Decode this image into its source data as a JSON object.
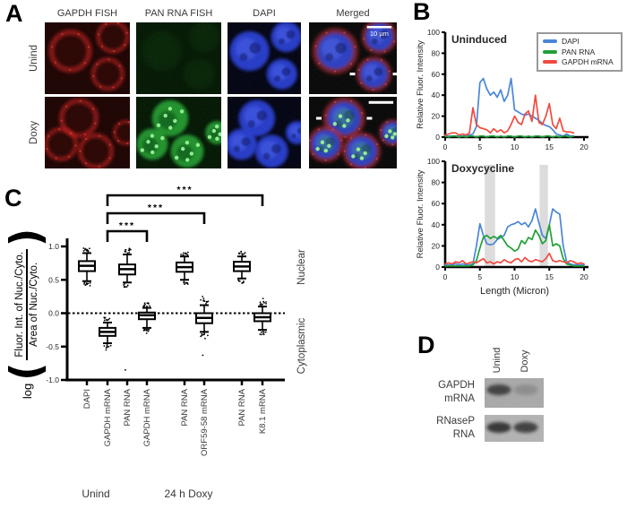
{
  "panels": {
    "a": {
      "label": "A",
      "col_headers": [
        "GAPDH FISH",
        "PAN RNA FISH",
        "DAPI",
        "Merged"
      ],
      "row_labels": [
        "Unind",
        "Doxy"
      ],
      "scale_bar_label": "10 µm",
      "channels": {
        "red": "#c42420",
        "green": "#27a335",
        "blue": "#2940d6"
      }
    },
    "b": {
      "label": "B",
      "legend": [
        {
          "label": "DAPI",
          "color": "#4a86d8"
        },
        {
          "label": "PAN RNA",
          "color": "#21a038"
        },
        {
          "label": "GAPDH mRNA",
          "color": "#f04b40"
        }
      ]
    },
    "c": {
      "label": "C",
      "ylabel_prefix": "log",
      "ylabel_paren_open": "(",
      "ylabel_paren_close": ")",
      "ylabel_numerator": "Fluor. Int. of Nuc./Cyto.",
      "ylabel_denominator": "Area of Nuc./Cyto.",
      "right_label_top": "Nuclear",
      "right_label_bottom": "Cytoplasmic",
      "groups": [
        "Unind",
        "24 h Doxy"
      ]
    },
    "d": {
      "label": "D",
      "col_labels": [
        "Unind",
        "Doxy"
      ],
      "row_labels": [
        [
          "GAPDH",
          "mRNA"
        ],
        [
          "RNaseP",
          "RNA"
        ]
      ],
      "band_intensity": [
        [
          0.78,
          0.2
        ],
        [
          0.88,
          0.8
        ]
      ]
    }
  },
  "chart_data": [
    {
      "type": "line",
      "title": "Uninduced",
      "xlabel": "",
      "ylabel": "Relative Fluor. Intensity",
      "xlim": [
        0,
        20
      ],
      "ylim": [
        0,
        100
      ],
      "xticks": [
        0,
        5,
        10,
        15,
        20
      ],
      "yticks": [
        0,
        20,
        40,
        60,
        80,
        100
      ],
      "legend_position": "top-right",
      "x": [
        0,
        0.5,
        1,
        1.5,
        2,
        2.5,
        3,
        3.5,
        4,
        4.5,
        5,
        5.5,
        6,
        6.5,
        7,
        7.5,
        8,
        8.5,
        9,
        9.5,
        10,
        10.5,
        11,
        11.5,
        12,
        12.5,
        13,
        13.5,
        14,
        14.5,
        15,
        15.5,
        16,
        16.5,
        17,
        17.5,
        18,
        18.5
      ],
      "series": [
        {
          "name": "DAPI",
          "color": "#4a86d8",
          "y": [
            1,
            1,
            1,
            1,
            1,
            1,
            2,
            2,
            3,
            10,
            52,
            56,
            46,
            40,
            43,
            38,
            45,
            34,
            40,
            56,
            26,
            24,
            22,
            21,
            22,
            20,
            18,
            16,
            13,
            11,
            10,
            7,
            3,
            2,
            1,
            3,
            1,
            1
          ]
        },
        {
          "name": "PAN RNA",
          "color": "#21a038",
          "y": [
            1,
            0,
            1,
            1,
            0,
            1,
            0,
            1,
            1,
            0,
            1,
            1,
            0,
            1,
            1,
            0,
            1,
            0,
            1,
            1,
            0,
            1,
            1,
            0,
            1,
            0,
            1,
            1,
            0,
            1,
            1,
            0,
            1,
            0,
            1,
            1,
            0,
            1
          ]
        },
        {
          "name": "GAPDH mRNA",
          "color": "#f04b40",
          "y": [
            2,
            3,
            4,
            4,
            2,
            3,
            2,
            4,
            28,
            12,
            9,
            8,
            7,
            4,
            8,
            5,
            7,
            4,
            6,
            12,
            20,
            14,
            12,
            22,
            25,
            15,
            40,
            14,
            12,
            20,
            32,
            12,
            8,
            18,
            6,
            5,
            5,
            4
          ]
        }
      ]
    },
    {
      "type": "line",
      "title": "Doxycycline",
      "xlabel": "Length (Micron)",
      "ylabel": "Relative Fluor. Intensity",
      "xlim": [
        0,
        20
      ],
      "ylim": [
        0,
        100
      ],
      "xticks": [
        0,
        5,
        10,
        15,
        20
      ],
      "yticks": [
        0,
        20,
        40,
        60,
        80,
        100
      ],
      "shaded_regions": [
        [
          5.7,
          7.2
        ],
        [
          13.6,
          14.8
        ]
      ],
      "x": [
        0,
        0.5,
        1,
        1.5,
        2,
        2.5,
        3,
        3.5,
        4,
        4.5,
        5,
        5.5,
        6,
        6.5,
        7,
        7.5,
        8,
        8.5,
        9,
        9.5,
        10,
        10.5,
        11,
        11.5,
        12,
        12.5,
        13,
        13.5,
        14,
        14.5,
        15,
        15.5,
        16,
        16.5,
        17,
        17.5,
        18,
        18.5,
        19,
        19.5,
        20
      ],
      "series": [
        {
          "name": "DAPI",
          "color": "#4a86d8",
          "y": [
            2,
            2,
            2,
            3,
            2,
            3,
            2,
            2,
            3,
            20,
            41,
            30,
            22,
            21,
            22,
            26,
            28,
            30,
            38,
            40,
            41,
            43,
            40,
            42,
            38,
            44,
            55,
            42,
            30,
            27,
            40,
            55,
            52,
            50,
            20,
            5,
            3,
            2,
            2,
            2,
            2
          ]
        },
        {
          "name": "PAN RNA",
          "color": "#21a038",
          "y": [
            1,
            1,
            1,
            1,
            1,
            1,
            1,
            1,
            2,
            6,
            18,
            28,
            30,
            27,
            29,
            27,
            30,
            25,
            20,
            18,
            15,
            17,
            25,
            22,
            28,
            26,
            35,
            30,
            22,
            25,
            40,
            20,
            22,
            20,
            8,
            3,
            2,
            1,
            1,
            1,
            1
          ]
        },
        {
          "name": "GAPDH mRNA",
          "color": "#f04b40",
          "y": [
            3,
            4,
            3,
            5,
            4,
            6,
            3,
            4,
            5,
            4,
            6,
            8,
            4,
            5,
            3,
            5,
            4,
            7,
            5,
            4,
            7,
            8,
            5,
            9,
            6,
            5,
            7,
            6,
            5,
            8,
            13,
            6,
            5,
            6,
            5,
            4,
            6,
            5,
            3,
            4,
            3
          ]
        }
      ]
    },
    {
      "type": "box",
      "ylabel": "log (Fluor. Int. of Nuc./Cyto. / Area of Nuc./Cyto.)",
      "ylim": [
        -1.0,
        1.0
      ],
      "yticks": [
        1.0,
        0.5,
        0.0,
        -0.5,
        -1.0
      ],
      "zero_line_dashed": true,
      "right_axis_labels": [
        "Nuclear",
        "Cytoplasmic"
      ],
      "categories": [
        {
          "label": "DAPI",
          "group": "Unind",
          "median": 0.71,
          "q1": 0.63,
          "q3": 0.78,
          "whisker_low": 0.48,
          "whisker_high": 0.9,
          "outliers": [
            0.95,
            0.97,
            0.45,
            0.42
          ]
        },
        {
          "label": "GAPDH mRNA",
          "group": "Unind",
          "median": -0.28,
          "q1": -0.34,
          "q3": -0.22,
          "whisker_low": -0.45,
          "whisker_high": -0.14,
          "outliers": [
            -0.52,
            -0.55
          ]
        },
        {
          "label": "PAN RNA",
          "group": "Unind",
          "median": 0.66,
          "q1": 0.58,
          "q3": 0.73,
          "whisker_low": 0.46,
          "whisker_high": 0.88,
          "outliers": [
            0.97,
            0.95,
            0.44,
            -0.85
          ]
        },
        {
          "label": "GAPDH mRNA",
          "group": "24 h Doxy",
          "median": -0.03,
          "q1": -0.09,
          "q3": 0.01,
          "whisker_low": -0.22,
          "whisker_high": 0.08,
          "outliers": [
            0.12,
            -0.27,
            -0.3
          ]
        },
        {
          "label": "PAN RNA",
          "group": "24 h Doxy",
          "median": 0.69,
          "q1": 0.62,
          "q3": 0.76,
          "whisker_low": 0.5,
          "whisker_high": 0.85,
          "outliers": [
            0.9,
            0.45
          ]
        },
        {
          "label": "ORF59-58 mRNA",
          "group": "24 h Doxy",
          "median": -0.07,
          "q1": -0.15,
          "q3": 0.0,
          "whisker_low": -0.28,
          "whisker_high": 0.12,
          "outliers": [
            0.22,
            0.25,
            -0.38,
            -0.63
          ]
        },
        {
          "label": "PAN RNA",
          "group": "24 h Doxy",
          "median": 0.7,
          "q1": 0.63,
          "q3": 0.77,
          "whisker_low": 0.52,
          "whisker_high": 0.85,
          "outliers": [
            0.9,
            0.45
          ]
        },
        {
          "label": "K8.1 mRNA",
          "group": "24 h Doxy",
          "median": -0.06,
          "q1": -0.12,
          "q3": 0.0,
          "whisker_low": -0.25,
          "whisker_high": 0.1,
          "outliers": [
            0.22,
            -0.32
          ]
        }
      ],
      "significance": [
        {
          "a": 1,
          "b": 3,
          "label": "***"
        },
        {
          "a": 1,
          "b": 5,
          "label": "***"
        },
        {
          "a": 1,
          "b": 7,
          "label": "***"
        }
      ]
    }
  ]
}
